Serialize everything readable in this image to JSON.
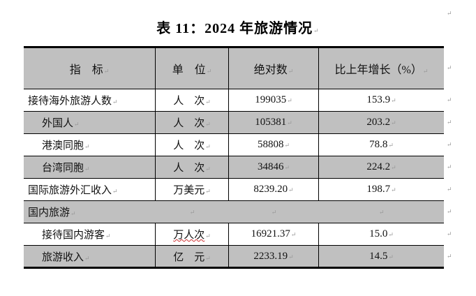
{
  "title": "表 11：2024 年旅游情况",
  "columns": [
    "指　标",
    "单　位",
    "绝对数",
    "比上年增长（%）"
  ],
  "rows": [
    {
      "label": "接待海外旅游人数",
      "unit": "人　次",
      "value": "199035",
      "growth": "153.9"
    },
    {
      "label": "外国人",
      "unit": "人　次",
      "value": "105381",
      "growth": "203.2"
    },
    {
      "label": "港澳同胞",
      "unit": "人　次",
      "value": "58808",
      "growth": "78.8"
    },
    {
      "label": "台湾同胞",
      "unit": "人　次",
      "value": "34846",
      "growth": "224.2"
    },
    {
      "label": "国际旅游外汇收入",
      "unit": "万美元",
      "value": "8239.20",
      "growth": "198.7"
    },
    {
      "label": "国内旅游",
      "unit": "",
      "value": "",
      "growth": ""
    },
    {
      "label": "接待国内游客",
      "unit": "万人次",
      "value": "16921.37",
      "growth": "15.0"
    },
    {
      "label": "旅游收入",
      "unit": "亿　元",
      "value": "2233.19",
      "growth": "14.5"
    }
  ],
  "paragraph_mark": "↵"
}
